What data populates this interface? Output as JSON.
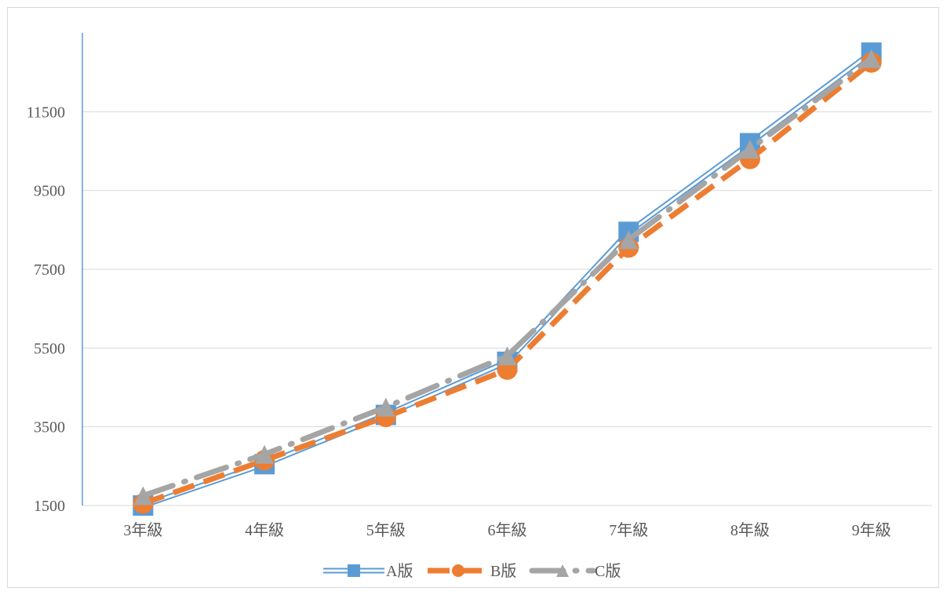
{
  "chart_data": {
    "type": "line",
    "categories": [
      "3年級",
      "4年級",
      "5年級",
      "6年級",
      "7年級",
      "8年級",
      "9年級"
    ],
    "series": [
      {
        "name": "A版",
        "values": [
          1500,
          2550,
          3800,
          5150,
          8450,
          10700,
          13000
        ],
        "color": "#5b9bd5",
        "marker": "square",
        "style": "double-line"
      },
      {
        "name": "B版",
        "values": [
          1550,
          2650,
          3750,
          4950,
          8050,
          10300,
          12750
        ],
        "color": "#ed7d31",
        "marker": "circle",
        "style": "dashed"
      },
      {
        "name": "C版",
        "values": [
          1750,
          2800,
          4000,
          5300,
          8250,
          10550,
          12850
        ],
        "color": "#a5a5a5",
        "marker": "triangle",
        "style": "dash-dot"
      }
    ],
    "y_ticks": [
      "1500",
      "3500",
      "5500",
      "7500",
      "9500",
      "11500"
    ],
    "ylim": [
      1500,
      13500
    ],
    "grid": true,
    "legend_position": "bottom"
  }
}
